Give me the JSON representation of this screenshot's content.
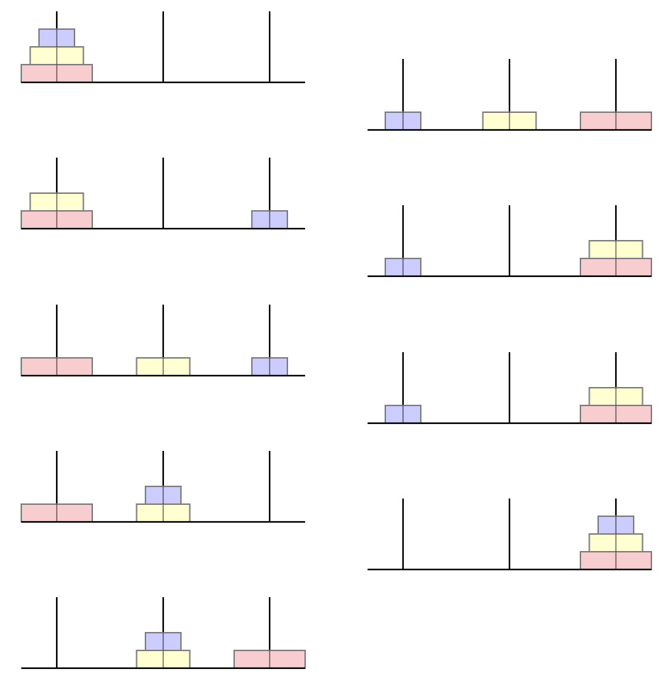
{
  "diagram": {
    "type": "tower-of-hanoi-sequence",
    "pegs": [
      "A",
      "B",
      "C"
    ],
    "disks": [
      {
        "id": "small",
        "size": 1,
        "color": "#ccccff"
      },
      {
        "id": "medium",
        "size": 2,
        "color": "#ffffd2"
      },
      {
        "id": "large",
        "size": 3,
        "color": "#f7cdd0"
      }
    ],
    "colors": {
      "disk_border": "#7f7f7f",
      "peg": "#000000",
      "base": "#000000"
    },
    "states": [
      {
        "step": 0,
        "pegs": [
          [
            "large",
            "medium",
            "small"
          ],
          [],
          []
        ]
      },
      {
        "step": 1,
        "pegs": [
          [
            "large",
            "medium"
          ],
          [],
          [
            "small"
          ]
        ]
      },
      {
        "step": 2,
        "pegs": [
          [
            "large"
          ],
          [
            "medium"
          ],
          [
            "small"
          ]
        ]
      },
      {
        "step": 3,
        "pegs": [
          [
            "large"
          ],
          [
            "medium",
            "small"
          ],
          []
        ]
      },
      {
        "step": 4,
        "pegs": [
          [],
          [
            "medium",
            "small"
          ],
          [
            "large"
          ]
        ]
      },
      {
        "step": 5,
        "pegs": [
          [
            "small"
          ],
          [
            "medium"
          ],
          [
            "large"
          ]
        ]
      },
      {
        "step": 6,
        "pegs": [
          [
            "small"
          ],
          [],
          [
            "large",
            "medium"
          ]
        ]
      },
      {
        "step": 7,
        "pegs": [
          [
            "small"
          ],
          [],
          [
            "large",
            "medium"
          ]
        ]
      },
      {
        "step": 8,
        "pegs": [
          [],
          [],
          [
            "large",
            "medium",
            "small"
          ]
        ]
      }
    ]
  }
}
